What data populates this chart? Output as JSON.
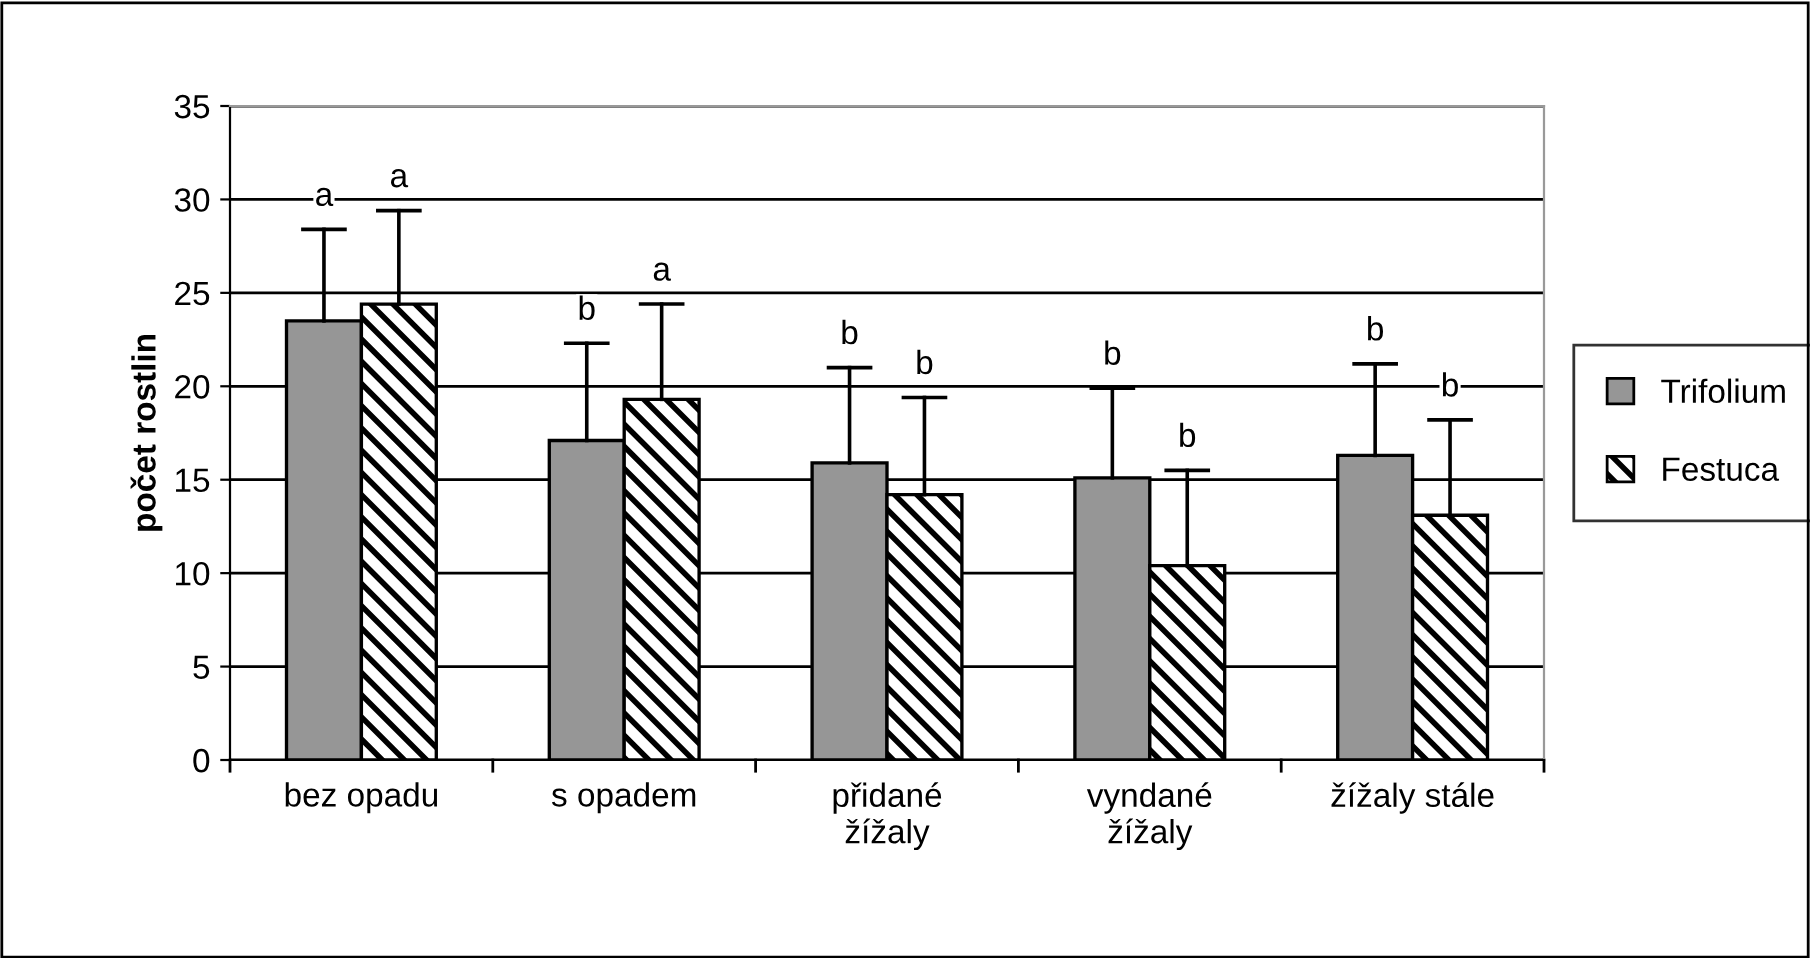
{
  "chart_data": {
    "type": "bar",
    "ylabel": "počet rostlin",
    "categories": [
      "bez opadu",
      "s opadem",
      "přidané\nžížaly",
      "vyndané\nžížaly",
      "žížaly stále"
    ],
    "series": [
      {
        "name": "Trifolium",
        "color": "#969696",
        "values": [
          23.5,
          17.1,
          15.9,
          15.1,
          16.3
        ],
        "errors": [
          [
            23.5,
            28.4
          ],
          [
            17.1,
            22.3
          ],
          [
            15.9,
            21.0
          ],
          [
            15.1,
            19.9
          ],
          [
            16.3,
            21.2
          ]
        ]
      },
      {
        "name": "Festuca",
        "color": "#000000",
        "values": [
          24.4,
          19.3,
          14.2,
          10.4,
          13.1
        ],
        "errors": [
          [
            24.4,
            29.4
          ],
          [
            19.3,
            24.4
          ],
          [
            14.2,
            19.4
          ],
          [
            10.4,
            15.5
          ],
          [
            13.1,
            18.2
          ]
        ]
      }
    ],
    "annotations": [
      "a",
      "a",
      "b",
      "a",
      "b",
      "b",
      "b",
      "b",
      "b",
      "b"
    ],
    "ylim": [
      0,
      35
    ],
    "yticks": [
      0,
      5,
      10,
      15,
      20,
      25,
      30,
      35
    ],
    "grid": "y",
    "legend": "right"
  }
}
